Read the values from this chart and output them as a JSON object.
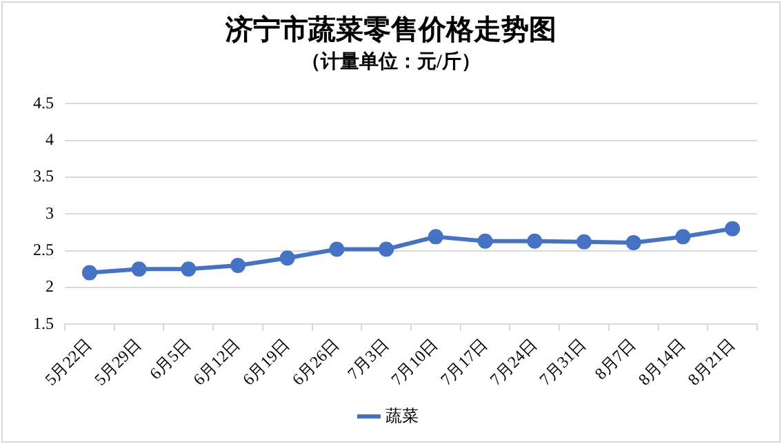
{
  "chart_data": {
    "type": "line",
    "title": "济宁市蔬菜零售价格走势图",
    "subtitle": "（计量单位：元/斤）",
    "categories": [
      "5月22日",
      "5月29日",
      "6月5日",
      "6月12日",
      "6月19日",
      "6月26日",
      "7月3日",
      "7月10日",
      "7月17日",
      "7月24日",
      "7月31日",
      "8月7日",
      "8月14日",
      "8月21日"
    ],
    "series": [
      {
        "name": "蔬菜",
        "color": "#4472c4",
        "values": [
          2.2,
          2.25,
          2.25,
          2.3,
          2.4,
          2.52,
          2.52,
          2.69,
          2.63,
          2.63,
          2.62,
          2.61,
          2.69,
          2.8
        ]
      }
    ],
    "ylim": [
      1.5,
      4.5
    ],
    "yticks": [
      1.5,
      2,
      2.5,
      3,
      3.5,
      4,
      4.5
    ],
    "grid": "y",
    "legend": "bottom",
    "marker": "circle",
    "line_style": "solid"
  }
}
